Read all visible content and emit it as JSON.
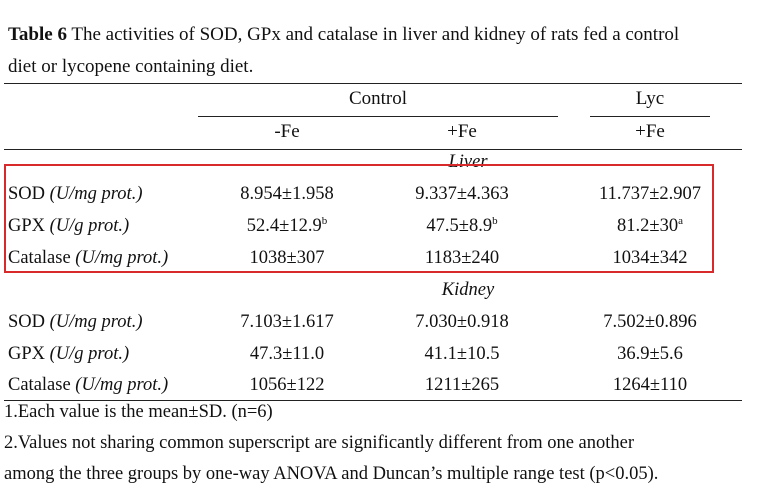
{
  "caption": {
    "label": "Table 6",
    "line1": " The activities of SOD, GPx and catalase in liver and kidney of rats fed a control",
    "line2": "diet or lycopene containing diet."
  },
  "header": {
    "group_control": "Control",
    "group_lyc": "Lyc",
    "col1": "-Fe",
    "col2": "+Fe",
    "col3": "+Fe"
  },
  "liver": {
    "title": "Liver",
    "rows": [
      {
        "name": "SOD",
        "unit": "(U/mg prot.)",
        "v1": "8.954±1.958",
        "v2": "9.337±4.363",
        "v3": "11.737±2.907",
        "s1": "",
        "s2": "",
        "s3": ""
      },
      {
        "name": "GPX",
        "unit": "(U/g prot.)",
        "v1": "52.4±12.9",
        "v2": "47.5±8.9",
        "v3": "81.2±30",
        "s1": "b",
        "s2": "b",
        "s3": "a"
      },
      {
        "name": "Catalase",
        "unit": "(U/mg prot.)",
        "v1": "1038±307",
        "v2": "1183±240",
        "v3": "1034±342",
        "s1": "",
        "s2": "",
        "s3": ""
      }
    ]
  },
  "kidney": {
    "title": "Kidney",
    "rows": [
      {
        "name": "SOD",
        "unit": "(U/mg prot.)",
        "v1": "7.103±1.617",
        "v2": "7.030±0.918",
        "v3": "7.502±0.896"
      },
      {
        "name": "GPX",
        "unit": "(U/g prot.)",
        "v1": "47.3±11.0",
        "v2": "41.1±10.5",
        "v3": "36.9±5.6"
      },
      {
        "name": "Catalase",
        "unit": "(U/mg prot.)",
        "v1": "1056±122",
        "v2": "1211±265",
        "v3": "1264±110"
      }
    ]
  },
  "notes": {
    "n1": "1.Each value is the mean±SD. (n=6)",
    "n2a": "2.Values not sharing common superscript are significantly different from one another",
    "n2b": "among the three groups by one-way ANOVA and Duncan’s multiple range test (p<0.05)."
  },
  "colors": {
    "highlight_box": "#d82a2a"
  }
}
